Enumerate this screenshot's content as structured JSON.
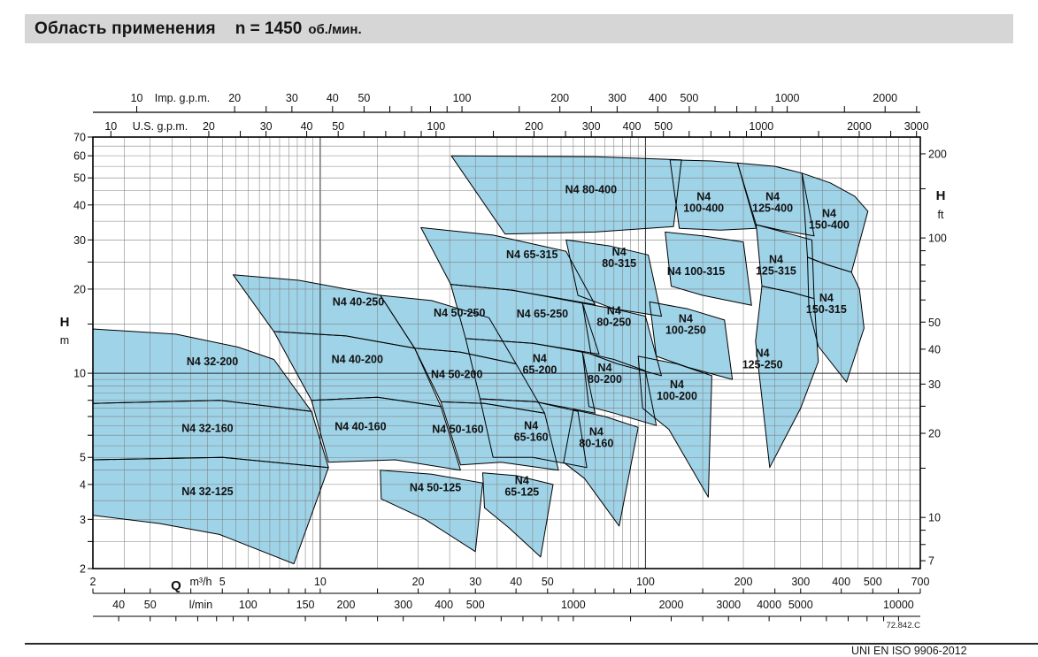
{
  "header": {
    "title": "Область применения",
    "speed_label": "n = 1450",
    "speed_unit": "об./мин."
  },
  "footer": {
    "drawing_code": "72.842.C",
    "standard_ref": "UNI EN ISO 9906-2012"
  },
  "chart_data": {
    "type": "area",
    "title": "Область применения n = 1450 об./мин.",
    "series_family": "N4",
    "speed_rpm": 1450,
    "q_range_m3h": [
      2,
      700
    ],
    "h_range_m": [
      2,
      70
    ],
    "grid": true,
    "region_fill": "#9fd3e8",
    "axes": {
      "left": {
        "title": "H",
        "unit": "m",
        "labels": [
          70,
          60,
          50,
          40,
          30,
          20,
          10,
          5,
          4,
          3,
          2
        ]
      },
      "right": {
        "title": "H",
        "unit": "ft",
        "labels": [
          200,
          100,
          50,
          40,
          30,
          20,
          10,
          7
        ],
        "per_m": 3.2808
      },
      "top_imp": {
        "unit": "Imp. g.p.m.",
        "labels": [
          10,
          20,
          30,
          40,
          50,
          100,
          200,
          300,
          400,
          500,
          1000,
          2000
        ],
        "per_m3h": 3.6662
      },
      "top_us": {
        "unit": "U.S. g.p.m.",
        "labels": [
          10,
          20,
          30,
          40,
          50,
          100,
          200,
          300,
          400,
          500,
          1000,
          2000,
          3000
        ],
        "per_m3h": 4.4029
      },
      "bottom_m3h": {
        "title": "Q",
        "unit": "m³/h",
        "labels": [
          2,
          5,
          10,
          20,
          30,
          40,
          50,
          100,
          200,
          300,
          400,
          500,
          700
        ]
      },
      "bottom_lmin": {
        "unit": "l/min",
        "labels": [
          40,
          50,
          100,
          150,
          200,
          300,
          400,
          500,
          1000,
          2000,
          3000,
          4000,
          5000,
          10000
        ],
        "per_m3h": 16.667
      }
    },
    "regions": [
      {
        "label": [
          "N4 32-200"
        ],
        "label_q": 4.66,
        "label_h": 11.0,
        "points_qh": [
          [
            2,
            14.4
          ],
          [
            3.6,
            13.8
          ],
          [
            5.6,
            12.4
          ],
          [
            7.2,
            11.2
          ],
          [
            9.4,
            7.3
          ],
          [
            4.9,
            8.0
          ],
          [
            2,
            7.8
          ]
        ]
      },
      {
        "label": [
          "N4 32-160"
        ],
        "label_q": 4.5,
        "label_h": 6.35,
        "points_qh": [
          [
            2,
            7.8
          ],
          [
            4.9,
            8.0
          ],
          [
            9.4,
            7.3
          ],
          [
            10.6,
            4.6
          ],
          [
            5,
            5.0
          ],
          [
            2,
            4.9
          ]
        ]
      },
      {
        "label": [
          "N4 32-125"
        ],
        "label_q": 4.5,
        "label_h": 3.77,
        "points_qh": [
          [
            2,
            4.9
          ],
          [
            5,
            5.0
          ],
          [
            10.6,
            4.6
          ],
          [
            8.3,
            2.08
          ],
          [
            4.9,
            2.65
          ],
          [
            3.2,
            2.9
          ],
          [
            2,
            3.1
          ]
        ]
      },
      {
        "label": [
          "N4 40-250"
        ],
        "label_q": 13.1,
        "label_h": 18.0,
        "points_qh": [
          [
            5.4,
            22.5
          ],
          [
            8.6,
            21.5
          ],
          [
            15.3,
            19.0
          ],
          [
            19.5,
            12.3
          ],
          [
            12,
            13.6
          ],
          [
            7.2,
            14.1
          ]
        ]
      },
      {
        "label": [
          "N4 40-200"
        ],
        "label_q": 13.0,
        "label_h": 11.2,
        "points_qh": [
          [
            7.2,
            14.1
          ],
          [
            12,
            13.6
          ],
          [
            19.5,
            12.3
          ],
          [
            23.5,
            7.6
          ],
          [
            15,
            8.2
          ],
          [
            9.4,
            8.0
          ]
        ]
      },
      {
        "label": [
          "N4 40-160"
        ],
        "label_q": 13.3,
        "label_h": 6.45,
        "points_qh": [
          [
            9.4,
            8.0
          ],
          [
            15,
            8.2
          ],
          [
            23.5,
            7.6
          ],
          [
            27,
            4.5
          ],
          [
            17,
            4.9
          ],
          [
            10.6,
            4.8
          ]
        ]
      },
      {
        "label": [
          "N4 50-250"
        ],
        "label_q": 26.8,
        "label_h": 16.4,
        "points_qh": [
          [
            15.3,
            19.0
          ],
          [
            22,
            18.2
          ],
          [
            33,
            15.8
          ],
          [
            40,
            10.8
          ],
          [
            27,
            11.9
          ],
          [
            19.5,
            12.3
          ]
        ]
      },
      {
        "label": [
          "N4 50-200"
        ],
        "label_q": 26.3,
        "label_h": 9.9,
        "points_qh": [
          [
            19.5,
            12.3
          ],
          [
            27,
            11.9
          ],
          [
            40,
            10.8
          ],
          [
            49,
            7.2
          ],
          [
            32,
            7.8
          ],
          [
            23.5,
            7.9
          ]
        ]
      },
      {
        "label": [
          "N4 50-160"
        ],
        "label_q": 26.5,
        "label_h": 6.3,
        "points_qh": [
          [
            23.5,
            7.9
          ],
          [
            32,
            7.8
          ],
          [
            49,
            7.2
          ],
          [
            54,
            4.5
          ],
          [
            36,
            4.8
          ],
          [
            27,
            4.7
          ]
        ]
      },
      {
        "label": [
          "N4 50-125"
        ],
        "label_q": 22.6,
        "label_h": 3.9,
        "points_qh": [
          [
            15.3,
            4.5
          ],
          [
            22,
            4.35
          ],
          [
            31.6,
            4.05
          ],
          [
            30,
            2.3
          ],
          [
            21,
            3.0
          ],
          [
            15.4,
            3.55
          ]
        ]
      },
      {
        "label": [
          "N4 65-315"
        ],
        "label_q": 44.8,
        "label_h": 26.6,
        "points_qh": [
          [
            20.4,
            33.2
          ],
          [
            34,
            31.2
          ],
          [
            57,
            27.3
          ],
          [
            70,
            17.6
          ],
          [
            39,
            19.8
          ],
          [
            25.2,
            20.8
          ]
        ]
      },
      {
        "label": [
          "N4 65-250"
        ],
        "label_q": 48.2,
        "label_h": 16.3,
        "points_qh": [
          [
            25.2,
            20.8
          ],
          [
            39,
            19.8
          ],
          [
            64,
            17.8
          ],
          [
            72,
            11.7
          ],
          [
            45,
            12.8
          ],
          [
            28,
            13.3
          ]
        ]
      },
      {
        "label": [
          "N4",
          "65-200"
        ],
        "label_q": 47.3,
        "label_h": 10.8,
        "points_qh": [
          [
            28,
            13.3
          ],
          [
            45,
            12.8
          ],
          [
            64,
            11.9
          ],
          [
            70,
            7.2
          ],
          [
            46,
            7.9
          ],
          [
            31,
            8.1
          ]
        ]
      },
      {
        "label": [
          "N4",
          "65-160"
        ],
        "label_q": 44.5,
        "label_h": 6.2,
        "points_qh": [
          [
            31,
            8.1
          ],
          [
            46,
            7.9
          ],
          [
            62,
            7.3
          ],
          [
            66,
            4.6
          ],
          [
            45,
            5.0
          ],
          [
            34,
            5.0
          ]
        ]
      },
      {
        "label": [
          "N4",
          "65-125"
        ],
        "label_q": 41.7,
        "label_h": 3.95,
        "points_qh": [
          [
            31.6,
            4.4
          ],
          [
            40,
            4.3
          ],
          [
            52,
            4.0
          ],
          [
            47.6,
            2.2
          ],
          [
            38,
            2.8
          ],
          [
            32,
            3.3
          ]
        ]
      },
      {
        "label": [
          "N4 80-400"
        ],
        "label_q": 68,
        "label_h": 45.4,
        "points_qh": [
          [
            25.3,
            60
          ],
          [
            70,
            59.5
          ],
          [
            129,
            58
          ],
          [
            122,
            33.5
          ],
          [
            70,
            32
          ],
          [
            37,
            31.5
          ]
        ]
      },
      {
        "label": [
          "N4",
          "80-315"
        ],
        "label_q": 83,
        "label_h": 26.0,
        "points_qh": [
          [
            57,
            30
          ],
          [
            78,
            28.5
          ],
          [
            102,
            26.5
          ],
          [
            112,
            16
          ],
          [
            80,
            17
          ],
          [
            62,
            19
          ]
        ]
      },
      {
        "label": [
          "N4",
          "80-250"
        ],
        "label_q": 80,
        "label_h": 16.0,
        "points_qh": [
          [
            64,
            17.8
          ],
          [
            80,
            17
          ],
          [
            100,
            16
          ],
          [
            112,
            9.8
          ],
          [
            82,
            10.8
          ],
          [
            68,
            11.7
          ]
        ]
      },
      {
        "label": [
          "N4",
          "80-200"
        ],
        "label_q": 75,
        "label_h": 10.0,
        "points_qh": [
          [
            64,
            11.9
          ],
          [
            80,
            11.2
          ],
          [
            100,
            10.2
          ],
          [
            108,
            6.5
          ],
          [
            80,
            7.2
          ],
          [
            67,
            7.6
          ]
        ]
      },
      {
        "label": [
          "N4",
          "80-160"
        ],
        "label_q": 70.6,
        "label_h": 5.9,
        "points_qh": [
          [
            60,
            7.4
          ],
          [
            75,
            7.0
          ],
          [
            95,
            6.4
          ],
          [
            83,
            2.84
          ],
          [
            65,
            4.2
          ],
          [
            56,
            4.8
          ]
        ]
      },
      {
        "label": [
          "N4",
          "100-400"
        ],
        "label_q": 151,
        "label_h": 41.0,
        "points_qh": [
          [
            119,
            58
          ],
          [
            160,
            57.5
          ],
          [
            192,
            56.5
          ],
          [
            219,
            33
          ],
          [
            170,
            32.5
          ],
          [
            127,
            33
          ]
        ]
      },
      {
        "label": [
          "N4 100-315"
        ],
        "label_q": 143,
        "label_h": 23.1,
        "points_qh": [
          [
            115,
            32
          ],
          [
            150,
            31
          ],
          [
            200,
            29.5
          ],
          [
            212,
            17.5
          ],
          [
            150,
            19
          ],
          [
            120,
            20.5
          ]
        ]
      },
      {
        "label": [
          "N4",
          "100-250"
        ],
        "label_q": 133,
        "label_h": 15.0,
        "points_qh": [
          [
            103,
            18
          ],
          [
            135,
            17
          ],
          [
            175,
            15.5
          ],
          [
            185,
            9.5
          ],
          [
            135,
            10.5
          ],
          [
            108,
            11.5
          ]
        ]
      },
      {
        "label": [
          "N4",
          "100-200"
        ],
        "label_q": 125,
        "label_h": 8.7,
        "points_qh": [
          [
            95,
            11.5
          ],
          [
            125,
            10.8
          ],
          [
            160,
            9.8
          ],
          [
            156,
            3.6
          ],
          [
            118,
            6.3
          ],
          [
            98,
            7.5
          ]
        ]
      },
      {
        "label": [
          "N4",
          "125-400"
        ],
        "label_q": 246,
        "label_h": 41.0,
        "points_qh": [
          [
            192,
            56.5
          ],
          [
            250,
            55
          ],
          [
            303,
            52
          ],
          [
            330,
            31
          ],
          [
            260,
            32.5
          ],
          [
            219,
            34
          ]
        ]
      },
      {
        "label": [
          "N4",
          "125-315"
        ],
        "label_q": 252,
        "label_h": 24.4,
        "points_qh": [
          [
            219,
            34
          ],
          [
            265,
            32
          ],
          [
            325,
            30
          ],
          [
            330,
            18.5
          ],
          [
            280,
            19.5
          ],
          [
            228,
            20.5
          ]
        ]
      },
      {
        "label": [
          "N4",
          "125-250"
        ],
        "label_q": 229,
        "label_h": 11.3,
        "points_qh": [
          [
            228,
            20.5
          ],
          [
            280,
            19.5
          ],
          [
            330,
            18.5
          ],
          [
            340,
            11
          ],
          [
            300,
            7.5
          ],
          [
            241,
            4.6
          ],
          [
            218,
            13
          ]
        ]
      },
      {
        "label": [
          "N4",
          "150-400"
        ],
        "label_q": 367,
        "label_h": 35.7,
        "points_qh": [
          [
            303,
            52
          ],
          [
            370,
            48
          ],
          [
            440,
            43
          ],
          [
            483,
            38
          ],
          [
            430,
            23
          ],
          [
            360,
            24.5
          ],
          [
            315,
            26
          ]
        ]
      },
      {
        "label": [
          "N4",
          "150-315"
        ],
        "label_q": 360,
        "label_h": 17.8,
        "points_qh": [
          [
            315,
            26
          ],
          [
            360,
            24.5
          ],
          [
            430,
            23
          ],
          [
            455,
            20
          ],
          [
            470,
            14.5
          ],
          [
            415,
            9.3
          ],
          [
            340,
            12.5
          ],
          [
            318,
            17
          ]
        ]
      }
    ]
  }
}
